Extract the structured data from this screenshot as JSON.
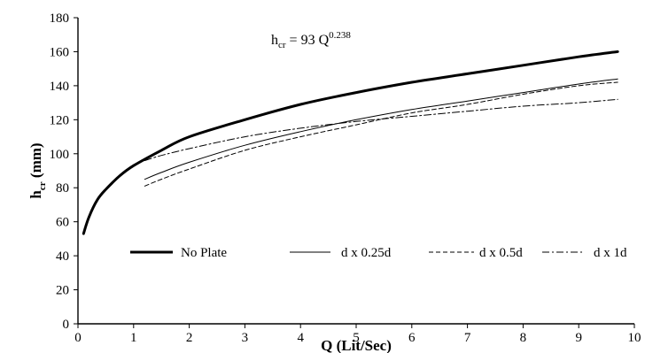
{
  "chart_data": {
    "type": "line",
    "title": "",
    "xlabel": "Q (Lit/Sec)",
    "ylabel_main": "h",
    "ylabel_sub": "cr",
    "ylabel_unit": " (mm)",
    "xlim": [
      0,
      10
    ],
    "ylim": [
      0,
      180
    ],
    "xticks": [
      "0",
      "1",
      "2",
      "3",
      "4",
      "5",
      "6",
      "7",
      "8",
      "9",
      "10"
    ],
    "yticks": [
      "0",
      "20",
      "40",
      "60",
      "80",
      "100",
      "120",
      "140",
      "160",
      "180"
    ],
    "grid": false,
    "legend_position": "lower-center",
    "annotation": {
      "lhs_main": "h",
      "lhs_sub": "cr",
      "rhs": " = 93 Q",
      "exponent": "0.238"
    },
    "series": [
      {
        "name": "No Plate",
        "style": "solid-thick",
        "color": "#000000",
        "x": [
          0.1,
          0.2,
          0.35,
          0.5,
          0.75,
          1.0,
          1.5,
          2,
          3,
          4,
          5,
          6,
          7,
          8,
          9,
          9.7
        ],
        "y": [
          53,
          63,
          73,
          79,
          87,
          93,
          102,
          110,
          120,
          129,
          136,
          142,
          147,
          152,
          157,
          160
        ]
      },
      {
        "name": "d x 0.25d",
        "style": "solid-thin",
        "color": "#000000",
        "x": [
          1.2,
          1.5,
          2,
          3,
          4,
          5,
          6,
          7,
          8,
          9,
          9.7
        ],
        "y": [
          85,
          89,
          95,
          105,
          113,
          120,
          126,
          131,
          136,
          141,
          144
        ]
      },
      {
        "name": "d x 0.5d",
        "style": "dashed",
        "color": "#000000",
        "x": [
          1.2,
          1.5,
          2,
          3,
          4,
          5,
          6,
          7,
          8,
          9,
          9.7
        ],
        "y": [
          81,
          85,
          91,
          102,
          110,
          117,
          124,
          129,
          135,
          140,
          142
        ]
      },
      {
        "name": "d x 1d",
        "style": "dashdot",
        "color": "#000000",
        "x": [
          1.2,
          1.5,
          2,
          3,
          4,
          5,
          6,
          7,
          8,
          9,
          9.7
        ],
        "y": [
          96,
          99,
          103,
          110,
          115,
          119,
          122,
          125,
          128,
          130,
          132
        ]
      }
    ]
  }
}
